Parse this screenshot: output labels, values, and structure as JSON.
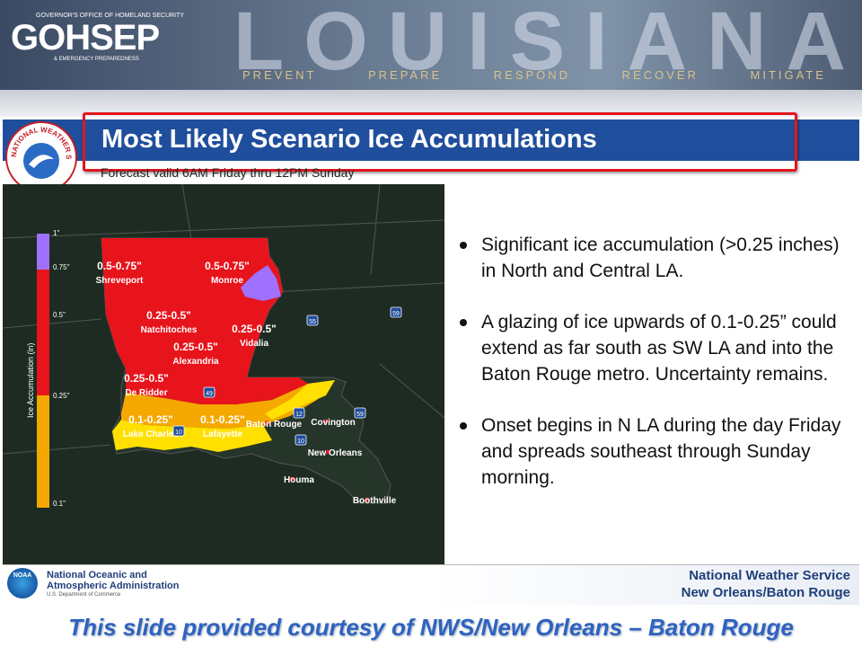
{
  "header": {
    "org": "GOHSEP",
    "org_line1": "GOVERNOR'S OFFICE OF HOMELAND SECURITY",
    "org_line2": "& EMERGENCY PREPAREDNESS",
    "banner": "LOUISIANA",
    "mottos": [
      "PREVENT",
      "PREPARE",
      "RESPOND",
      "RECOVER",
      "MITIGATE"
    ]
  },
  "slide": {
    "title": "Most Likely Scenario Ice Accumulations",
    "subtitle": "Forecast valid 6AM Friday thru 12PM Sunday",
    "logo_text": "NATIONAL WEATHER SERVICE"
  },
  "legend": {
    "title": "Ice Accumulation (in)",
    "labels": [
      "1\"",
      "0.75\"",
      "0.5\"",
      "0.25\"",
      "0.1\""
    ]
  },
  "map": {
    "zones": [
      {
        "range": "0.5-0.75\"",
        "place": "Shreveport"
      },
      {
        "range": "0.5-0.75\"",
        "place": "Monroe"
      },
      {
        "range": "0.25-0.5\"",
        "place": "Natchitoches"
      },
      {
        "range": "0.25-0.5\"",
        "place": "Vidalia"
      },
      {
        "range": "0.25-0.5\"",
        "place": "Alexandria"
      },
      {
        "range": "0.25-0.5\"",
        "place": "De Ridder"
      },
      {
        "range": "0.1-0.25\"",
        "place": "Lake Charles"
      },
      {
        "range": "0.1-0.25\"",
        "place": "Lafayette"
      }
    ],
    "cities": [
      "Baton Rouge",
      "Covington",
      "New Orleans",
      "Houma",
      "Boothville"
    ],
    "highways": [
      "55",
      "59",
      "49",
      "10",
      "12",
      "59",
      "10"
    ]
  },
  "bullets": [
    "Significant ice accumulation (>0.25 inches) in North and Central LA.",
    "A glazing of ice upwards of 0.1-0.25” could extend as far south as SW LA and into the Baton Rouge metro. Uncertainty remains.",
    "Onset begins in N LA during the day Friday and spreads southeast through Sunday morning."
  ],
  "footer": {
    "noaa_logo": "NOAA",
    "noaa_line1": "National Oceanic and",
    "noaa_line2": "Atmospheric Administration",
    "noaa_line3": "U.S. Department of Commerce",
    "nws_line1": "National Weather Service",
    "nws_line2": "New Orleans/Baton Rouge"
  },
  "caption": "This slide provided courtesy of NWS/New Orleans – Baton Rouge"
}
